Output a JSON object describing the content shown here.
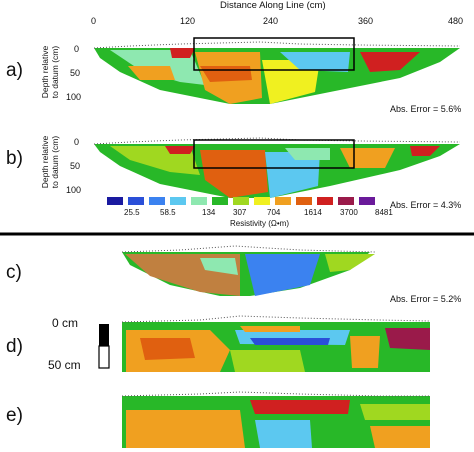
{
  "figure": {
    "x_axis_title": "Distance Along Line (cm)",
    "x_ticks": [
      "0",
      "120",
      "240",
      "360",
      "480"
    ],
    "y_axis_title_line1": "Depth relative",
    "y_axis_title_line2": "to datum (cm)",
    "y_ticks": [
      "0",
      "50",
      "100"
    ],
    "panels": [
      {
        "label": "a)",
        "error": "Abs. Error = 5.6%"
      },
      {
        "label": "b)",
        "error": "Abs. Error = 4.3%"
      },
      {
        "label": "c)",
        "error": "Abs. Error = 5.2%"
      },
      {
        "label": "d)",
        "error": ""
      },
      {
        "label": "e)",
        "error": ""
      }
    ],
    "colorbar": {
      "title": "Resistivity (Ω•m)",
      "tick_labels": [
        "25.5",
        "58.5",
        "134",
        "307",
        "704",
        "1614",
        "3700",
        "8481"
      ],
      "colors": [
        "#1a1aa0",
        "#2a4fd8",
        "#3b82f0",
        "#5cc8f0",
        "#8ee8b0",
        "#28b828",
        "#a0d820",
        "#f0f020",
        "#f0a020",
        "#e06010",
        "#d02020",
        "#9a1a4a",
        "#6a1a9a"
      ]
    },
    "scale_bar": {
      "top_label": "0 cm",
      "bottom_label": "50 cm"
    }
  }
}
